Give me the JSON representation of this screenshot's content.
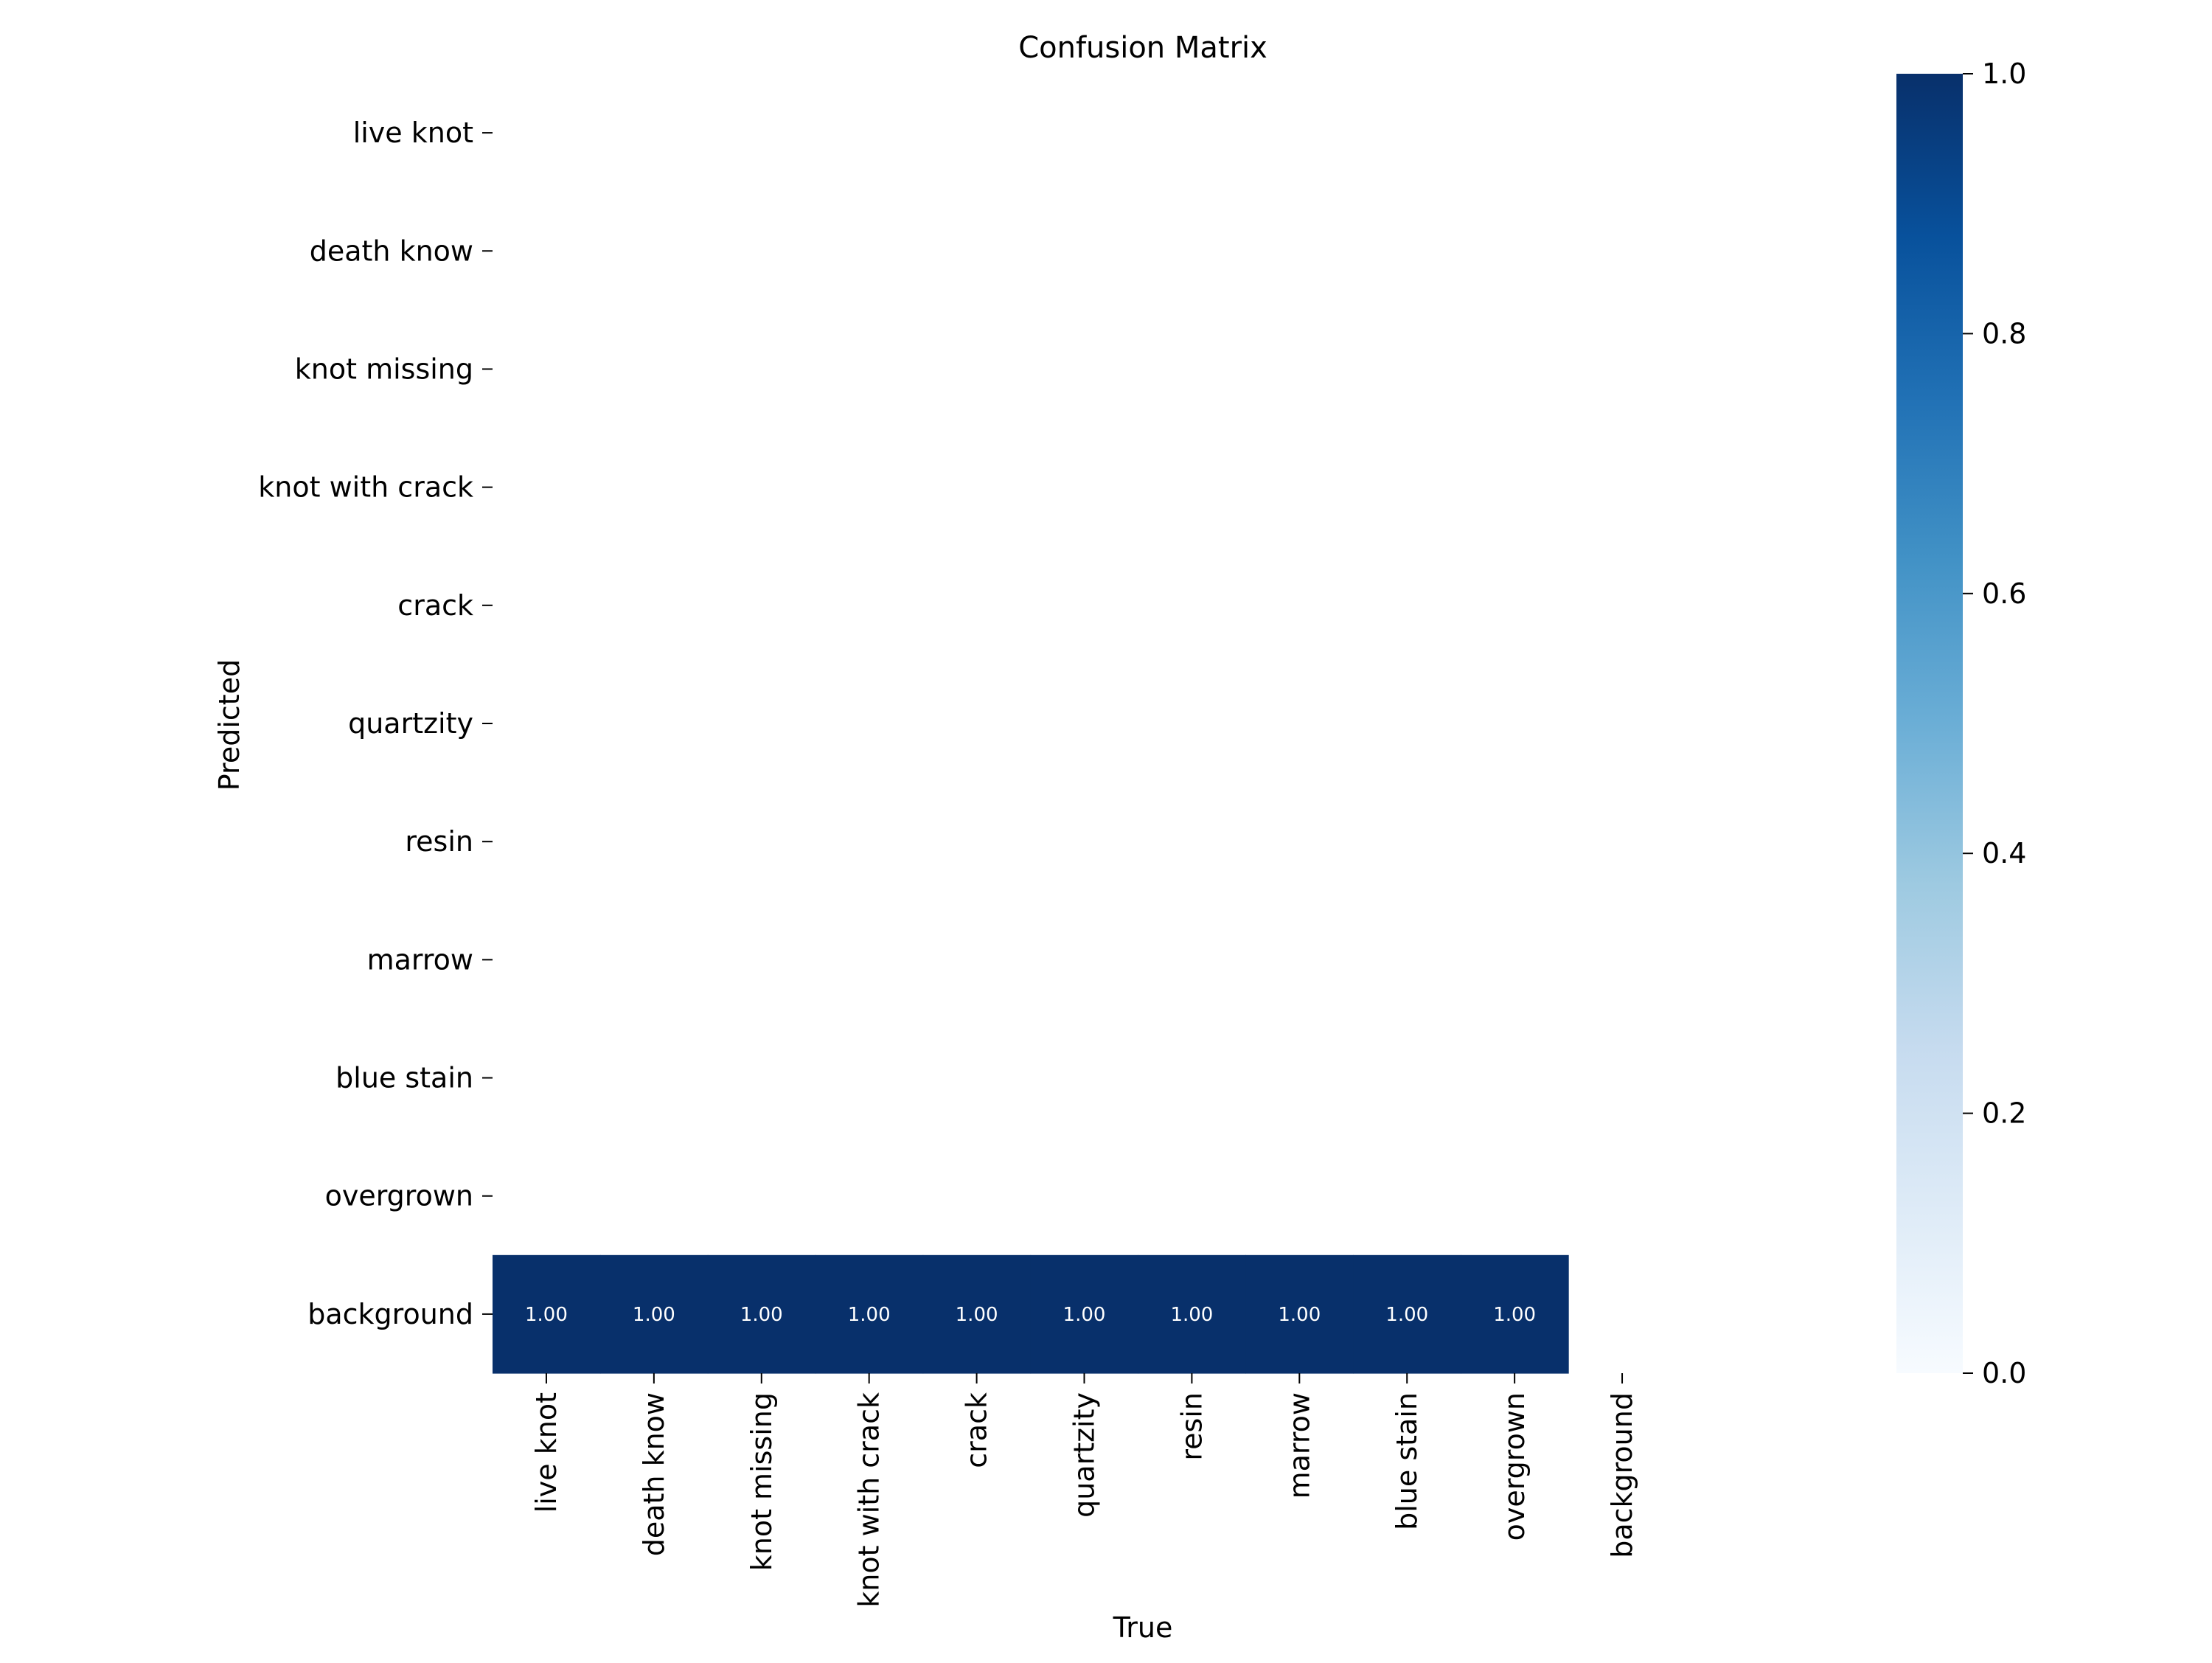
{
  "chart_data": {
    "type": "heatmap",
    "title": "Confusion Matrix",
    "xlabel": "True",
    "ylabel": "Predicted",
    "x_categories": [
      "live knot",
      "death know",
      "knot missing",
      "knot with crack",
      "crack",
      "quartzity",
      "resin",
      "marrow",
      "blue stain",
      "overgrown",
      "background"
    ],
    "y_categories": [
      "live knot",
      "death know",
      "knot missing",
      "knot with crack",
      "crack",
      "quartzity",
      "resin ",
      "marrow",
      "blue stain",
      "overgrown",
      "background"
    ],
    "matrix": [
      [
        null,
        null,
        null,
        null,
        null,
        null,
        null,
        null,
        null,
        null,
        null
      ],
      [
        null,
        null,
        null,
        null,
        null,
        null,
        null,
        null,
        null,
        null,
        null
      ],
      [
        null,
        null,
        null,
        null,
        null,
        null,
        null,
        null,
        null,
        null,
        null
      ],
      [
        null,
        null,
        null,
        null,
        null,
        null,
        null,
        null,
        null,
        null,
        null
      ],
      [
        null,
        null,
        null,
        null,
        null,
        null,
        null,
        null,
        null,
        null,
        null
      ],
      [
        null,
        null,
        null,
        null,
        null,
        null,
        null,
        null,
        null,
        null,
        null
      ],
      [
        null,
        null,
        null,
        null,
        null,
        null,
        null,
        null,
        null,
        null,
        null
      ],
      [
        null,
        null,
        null,
        null,
        null,
        null,
        null,
        null,
        null,
        null,
        null
      ],
      [
        null,
        null,
        null,
        null,
        null,
        null,
        null,
        null,
        null,
        null,
        null
      ],
      [
        null,
        null,
        null,
        null,
        null,
        null,
        null,
        null,
        null,
        null,
        null
      ],
      [
        1.0,
        1.0,
        1.0,
        1.0,
        1.0,
        1.0,
        1.0,
        1.0,
        1.0,
        1.0,
        null
      ]
    ],
    "value_format": "0.00",
    "colormap": "Blues",
    "colorbar": {
      "range": [
        0.0,
        1.0
      ],
      "ticks": [
        "0.0",
        "0.2",
        "0.4",
        "0.6",
        "0.8",
        "1.0"
      ],
      "color_low": "#f7fbff",
      "color_high": "#08306b"
    },
    "annotation_color": "#ffffff"
  }
}
